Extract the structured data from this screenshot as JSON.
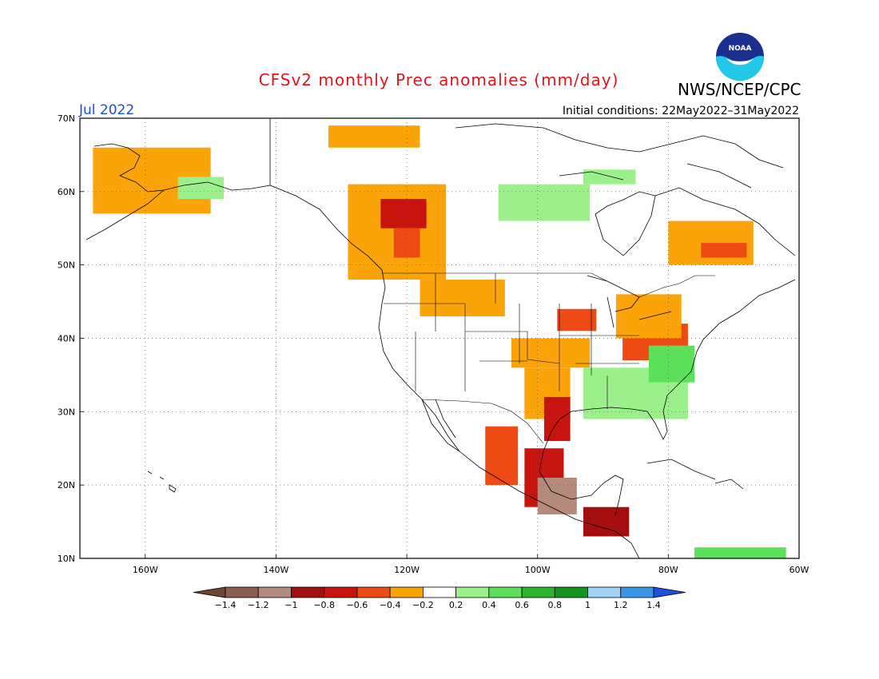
{
  "title": "CFSv2 monthly Prec anomalies (mm/day)",
  "agency": "NWS/NCEP/CPC",
  "logo_text": "NOAA",
  "period": "Jul 2022",
  "initial_conditions": "Initial conditions: 22May2022–31May2022",
  "map": {
    "lon_range": [
      -170,
      -60
    ],
    "lat_range": [
      10,
      70
    ],
    "lat_ticks": [
      "70N",
      "60N",
      "50N",
      "40N",
      "30N",
      "20N",
      "10N"
    ],
    "lon_ticks": [
      "160W",
      "140W",
      "120W",
      "100W",
      "80W",
      "60W"
    ],
    "grid": "dotted"
  },
  "colorbar": {
    "labels": [
      "−1.4",
      "−1.2",
      "−1",
      "−0.8",
      "−0.6",
      "−0.4",
      "−0.2",
      "0.2",
      "0.4",
      "0.6",
      "0.8",
      "1",
      "1.2",
      "1.4"
    ],
    "colors": [
      "#6e4535",
      "#8c5e4e",
      "#b48a7c",
      "#a50e0e",
      "#c8140e",
      "#ee4a14",
      "#fba40a",
      "#ffffff",
      "#9cf08c",
      "#5ce05a",
      "#2cb42c",
      "#14961e",
      "#a0d2f5",
      "#3c96e8",
      "#1e50dc"
    ]
  },
  "anomaly_regions": [
    {
      "name": "alaska-west",
      "lon": [
        -168,
        -150
      ],
      "lat": [
        57,
        66
      ],
      "class": "-0.3"
    },
    {
      "name": "alaska-north",
      "lon": [
        -132,
        -118
      ],
      "lat": [
        66,
        69
      ],
      "class": "-0.3"
    },
    {
      "name": "alaska-interior",
      "lon": [
        -155,
        -148
      ],
      "lat": [
        59,
        62
      ],
      "class": "0.3"
    },
    {
      "name": "bc-yukon",
      "lon": [
        -129,
        -114
      ],
      "lat": [
        48,
        61
      ],
      "class": "-0.3"
    },
    {
      "name": "bc-core",
      "lon": [
        -124,
        -117
      ],
      "lat": [
        55,
        59
      ],
      "class": "-0.7"
    },
    {
      "name": "alberta-core",
      "lon": [
        -122,
        -118
      ],
      "lat": [
        51,
        55
      ],
      "class": "-0.5"
    },
    {
      "name": "nw-territories",
      "lon": [
        -106,
        -92
      ],
      "lat": [
        56,
        61
      ],
      "class": "0.3"
    },
    {
      "name": "northern-plains",
      "lon": [
        -118,
        -105
      ],
      "lat": [
        43,
        48
      ],
      "class": "-0.3"
    },
    {
      "name": "central-plains",
      "lon": [
        -104,
        -92
      ],
      "lat": [
        36,
        40
      ],
      "class": "-0.3"
    },
    {
      "name": "upper-midwest",
      "lon": [
        -97,
        -91
      ],
      "lat": [
        41,
        44
      ],
      "class": "-0.5"
    },
    {
      "name": "ohio-valley",
      "lon": [
        -87,
        -77
      ],
      "lat": [
        37,
        42
      ],
      "class": "-0.5"
    },
    {
      "name": "great-lakes",
      "lon": [
        -88,
        -78
      ],
      "lat": [
        40,
        46
      ],
      "class": "-0.3"
    },
    {
      "name": "southeast",
      "lon": [
        -93,
        -77
      ],
      "lat": [
        29,
        36
      ],
      "class": "0.3"
    },
    {
      "name": "carolinas",
      "lon": [
        -83,
        -76
      ],
      "lat": [
        34,
        39
      ],
      "class": "0.5"
    },
    {
      "name": "southern-plains",
      "lon": [
        -102,
        -95
      ],
      "lat": [
        29,
        36
      ],
      "class": "-0.3"
    },
    {
      "name": "texas-coast",
      "lon": [
        -99,
        -95
      ],
      "lat": [
        26,
        32
      ],
      "class": "-0.7"
    },
    {
      "name": "mexico-west",
      "lon": [
        -108,
        -103
      ],
      "lat": [
        20,
        28
      ],
      "class": "-0.5"
    },
    {
      "name": "mexico-east",
      "lon": [
        -102,
        -96
      ],
      "lat": [
        17,
        25
      ],
      "class": "-0.7"
    },
    {
      "name": "mexico-south",
      "lon": [
        -100,
        -94
      ],
      "lat": [
        16,
        21
      ],
      "class": "-1.1"
    },
    {
      "name": "central-america",
      "lon": [
        -93,
        -86
      ],
      "lat": [
        13,
        17
      ],
      "class": "-0.9"
    },
    {
      "name": "quebec",
      "lon": [
        -80,
        -67
      ],
      "lat": [
        50,
        56
      ],
      "class": "-0.3"
    },
    {
      "name": "quebec-core",
      "lon": [
        -75,
        -68
      ],
      "lat": [
        51,
        53
      ],
      "class": "-0.5"
    },
    {
      "name": "nunavut",
      "lon": [
        -93,
        -85
      ],
      "lat": [
        61,
        63
      ],
      "class": "0.3"
    },
    {
      "name": "caribbean-south",
      "lon": [
        -76,
        -62
      ],
      "lat": [
        10,
        11.5
      ],
      "class": "0.5"
    }
  ]
}
